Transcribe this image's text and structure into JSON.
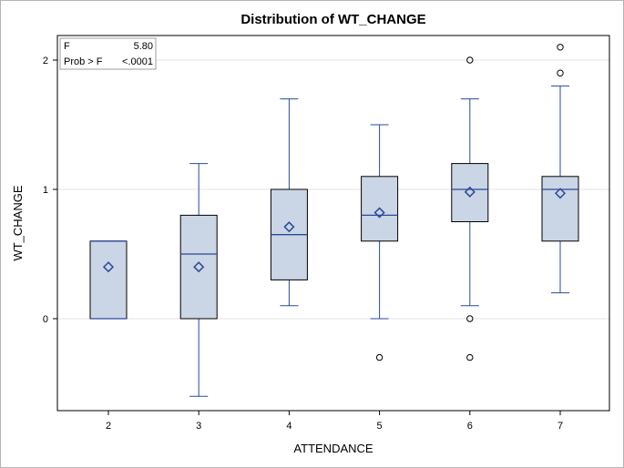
{
  "chart_data": {
    "type": "box",
    "title": "Distribution of WT_CHANGE",
    "xlabel": "ATTENDANCE",
    "ylabel": "WT_CHANGE",
    "categories": [
      "2",
      "3",
      "4",
      "5",
      "6",
      "7"
    ],
    "ylim": [
      -0.7,
      2.2
    ],
    "yticks": [
      0,
      1,
      2
    ],
    "grid": true,
    "boxes": [
      {
        "category": "2",
        "min": 0.0,
        "q1": 0.0,
        "median": 0.6,
        "q3": 0.6,
        "max": 0.6,
        "mean": 0.4,
        "outliers": []
      },
      {
        "category": "3",
        "min": -0.6,
        "q1": 0.0,
        "median": 0.5,
        "q3": 0.8,
        "max": 1.2,
        "mean": 0.4,
        "outliers": []
      },
      {
        "category": "4",
        "min": 0.1,
        "q1": 0.3,
        "median": 0.65,
        "q3": 1.0,
        "max": 1.7,
        "mean": 0.71,
        "outliers": []
      },
      {
        "category": "5",
        "min": 0.0,
        "q1": 0.6,
        "median": 0.8,
        "q3": 1.1,
        "max": 1.5,
        "mean": 0.82,
        "outliers": [
          -0.3
        ]
      },
      {
        "category": "6",
        "min": 0.1,
        "q1": 0.75,
        "median": 1.0,
        "q3": 1.2,
        "max": 1.7,
        "mean": 0.98,
        "outliers": [
          2.0,
          0.0,
          -0.3
        ]
      },
      {
        "category": "7",
        "min": 0.2,
        "q1": 0.6,
        "median": 1.0,
        "q3": 1.1,
        "max": 1.8,
        "mean": 0.97,
        "outliers": [
          2.1,
          1.9
        ]
      }
    ],
    "inset": {
      "placement": "top-left",
      "rows": [
        {
          "label": "F",
          "value": "5.80"
        },
        {
          "label": "Prob > F",
          "value": "<.0001"
        }
      ]
    },
    "colors": {
      "box_fill": "#cad5e5",
      "box_edge": "#000000",
      "whisker": "#2a4a9b",
      "median": "#2a4a9b",
      "mean_marker": "#2a4a9b",
      "outlier": "#000000",
      "grid": "#e3e3e3",
      "axis": "#000000"
    }
  }
}
